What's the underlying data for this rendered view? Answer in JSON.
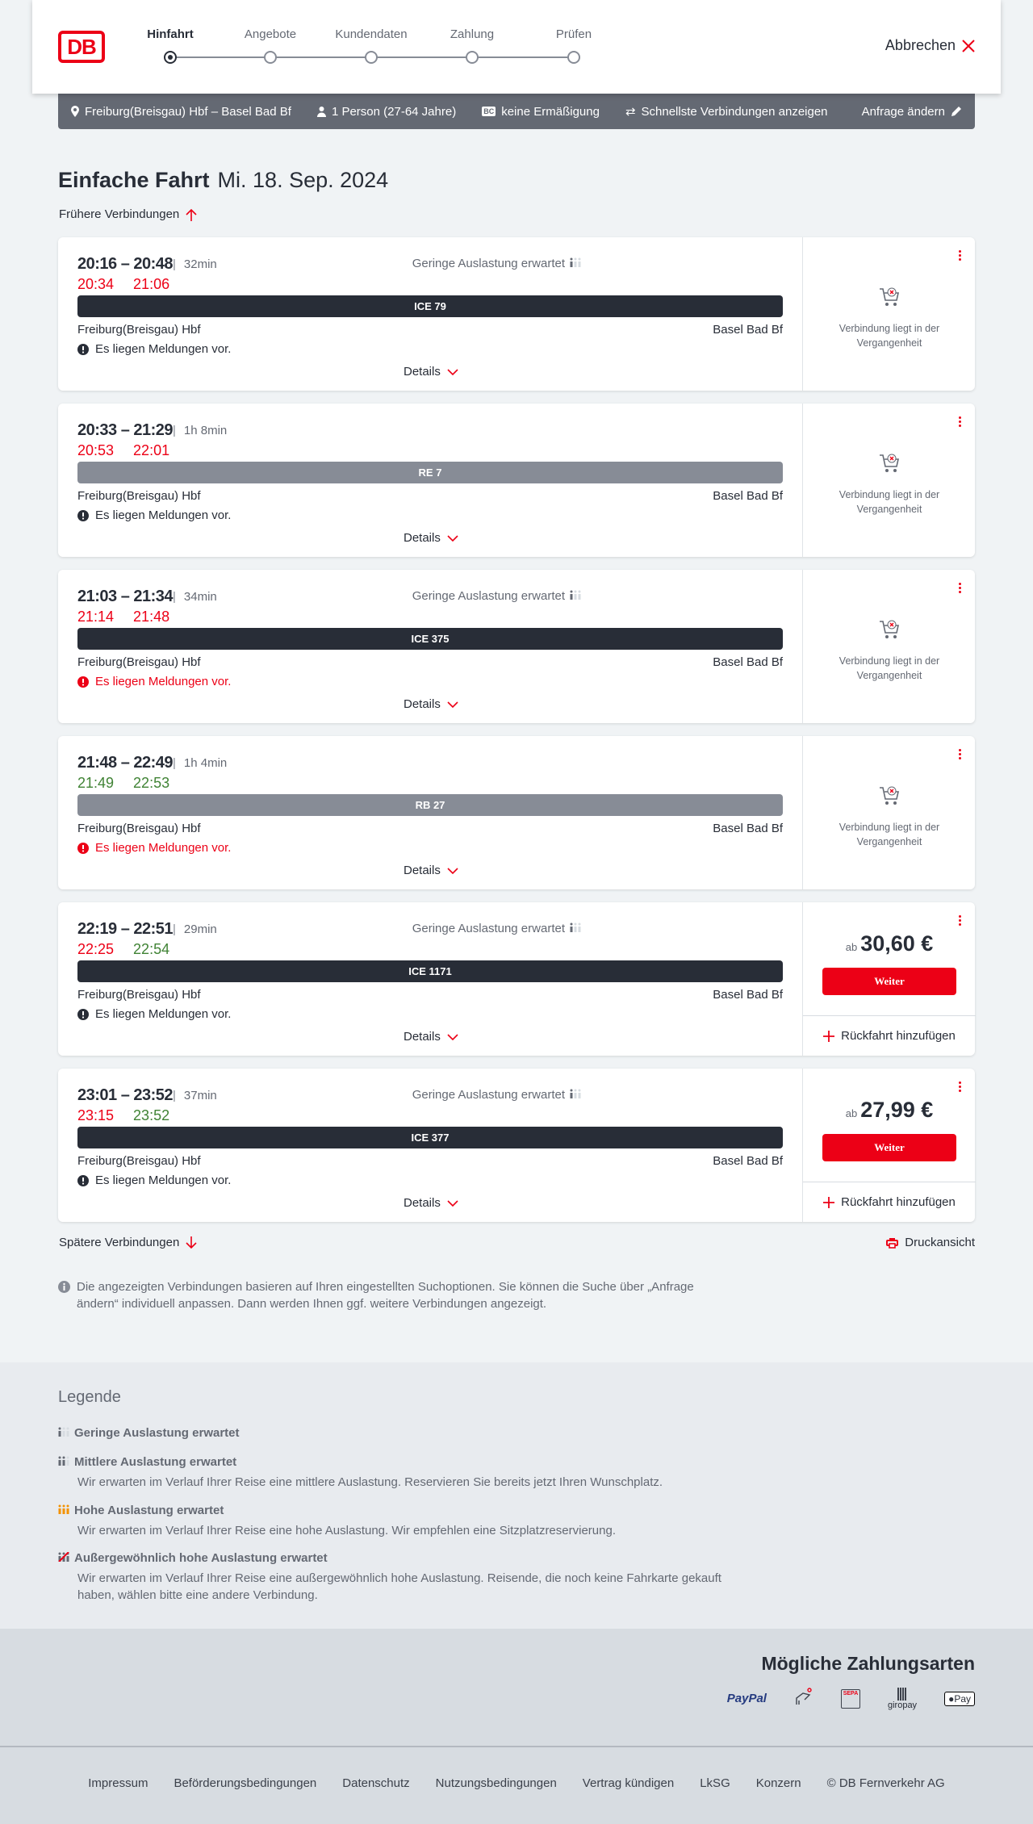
{
  "header": {
    "logo": "DB",
    "steps": [
      "Hinfahrt",
      "Angebote",
      "Kundendaten",
      "Zahlung",
      "Prüfen"
    ],
    "active_step": 0,
    "cancel": "Abbrechen"
  },
  "search_bar": {
    "route": "Freiburg(Breisgau) Hbf – Basel Bad Bf",
    "passengers": "1 Person (27-64 Jahre)",
    "discount_badge": "BC",
    "discount": "keine Ermäßigung",
    "fastest": "Schnellste Verbindungen anzeigen",
    "edit": "Anfrage ändern"
  },
  "title": {
    "type": "Einfache Fahrt",
    "date": "Mi. 18. Sep. 2024"
  },
  "earlier": "Frühere Verbindungen",
  "later": "Spätere Verbindungen",
  "print": "Druckansicht",
  "labels": {
    "details": "Details",
    "past": "Verbindung liegt in der Vergangenheit",
    "ab": "ab",
    "weiter": "Weiter",
    "return": "Rückfahrt hinzufügen"
  },
  "colors": {
    "accent": "#ec0016",
    "delay": "#ec0016",
    "ontime": "#408335",
    "ice": "#282d37",
    "regional": "#878c96",
    "bar": "#646973"
  },
  "connections": [
    {
      "times": "20:16 – 20:48",
      "duration": "32min",
      "dep_rt": "20:34",
      "dep_status": "late",
      "arr_rt": "21:06",
      "arr_status": "late",
      "load": "Geringe Auslastung erwartet",
      "train": "ICE 79",
      "train_kind": "ice",
      "from": "Freiburg(Breisgau) Hbf",
      "to": "Basel Bad Bf",
      "message": "Es liegen Meldungen vor.",
      "message_severity": "info",
      "past": true
    },
    {
      "times": "20:33 – 21:29",
      "duration": "1h 8min",
      "dep_rt": "20:53",
      "dep_status": "late",
      "arr_rt": "22:01",
      "arr_status": "late",
      "load": "",
      "train": "RE 7",
      "train_kind": "regional",
      "from": "Freiburg(Breisgau) Hbf",
      "to": "Basel Bad Bf",
      "message": "Es liegen Meldungen vor.",
      "message_severity": "info",
      "past": true
    },
    {
      "times": "21:03 – 21:34",
      "duration": "34min",
      "dep_rt": "21:14",
      "dep_status": "late",
      "arr_rt": "21:48",
      "arr_status": "late",
      "load": "Geringe Auslastung erwartet",
      "train": "ICE 375",
      "train_kind": "ice",
      "from": "Freiburg(Breisgau) Hbf",
      "to": "Basel Bad Bf",
      "message": "Es liegen Meldungen vor.",
      "message_severity": "warning",
      "past": true
    },
    {
      "times": "21:48 – 22:49",
      "duration": "1h 4min",
      "dep_rt": "21:49",
      "dep_status": "ontime",
      "arr_rt": "22:53",
      "arr_status": "ontime",
      "load": "",
      "train": "RB 27",
      "train_kind": "regional",
      "from": "Freiburg(Breisgau) Hbf",
      "to": "Basel Bad Bf",
      "message": "Es liegen Meldungen vor.",
      "message_severity": "warning",
      "past": true
    },
    {
      "times": "22:19 – 22:51",
      "duration": "29min",
      "dep_rt": "22:25",
      "dep_status": "late",
      "arr_rt": "22:54",
      "arr_status": "ontime",
      "load": "Geringe Auslastung erwartet",
      "train": "ICE 1171",
      "train_kind": "ice",
      "from": "Freiburg(Breisgau) Hbf",
      "to": "Basel Bad Bf",
      "message": "Es liegen Meldungen vor.",
      "message_severity": "info",
      "past": false,
      "price": "30,60 €"
    },
    {
      "times": "23:01 – 23:52",
      "duration": "37min",
      "dep_rt": "23:15",
      "dep_status": "late",
      "arr_rt": "23:52",
      "arr_status": "ontime",
      "load": "Geringe Auslastung erwartet",
      "train": "ICE 377",
      "train_kind": "ice",
      "from": "Freiburg(Breisgau) Hbf",
      "to": "Basel Bad Bf",
      "message": "Es liegen Meldungen vor.",
      "message_severity": "info",
      "past": false,
      "price": "27,99 €"
    }
  ],
  "info": "Die angezeigten Verbindungen basieren auf Ihren eingestellten Suchoptionen. Sie können die Suche über „Anfrage ändern“ individuell anpassen. Dann werden Ihnen ggf. weitere Verbindungen angezeigt.",
  "legend": {
    "title": "Legende",
    "items": [
      {
        "title": "Geringe Auslastung erwartet",
        "text": "",
        "level": 1
      },
      {
        "title": "Mittlere Auslastung erwartet",
        "text": "Wir erwarten im Verlauf Ihrer Reise eine mittlere Auslastung. Reservieren Sie bereits jetzt Ihren Wunschplatz.",
        "level": 2
      },
      {
        "title": "Hohe Auslastung erwartet",
        "text": "Wir erwarten im Verlauf Ihrer Reise eine hohe Auslastung. Wir empfehlen eine Sitzplatzreservierung.",
        "level": 3
      },
      {
        "title": "Außergewöhnlich hohe Auslastung erwartet",
        "text": "Wir erwarten im Verlauf Ihrer Reise eine außergewöhnlich hohe Auslastung. Reisende, die noch keine Fahrkarte gekauft haben, wählen bitte eine andere Verbindung.",
        "level": 4
      }
    ]
  },
  "payment": {
    "title": "Mögliche Zahlungsarten",
    "methods": [
      "PayPal",
      "Kreditkarte",
      "SEPA",
      "giropay",
      "Pay"
    ]
  },
  "footer": [
    "Impressum",
    "Beförderungsbedingungen",
    "Datenschutz",
    "Nutzungsbedingungen",
    "Vertrag kündigen",
    "LkSG",
    "Konzern",
    "© DB Fernverkehr AG"
  ]
}
